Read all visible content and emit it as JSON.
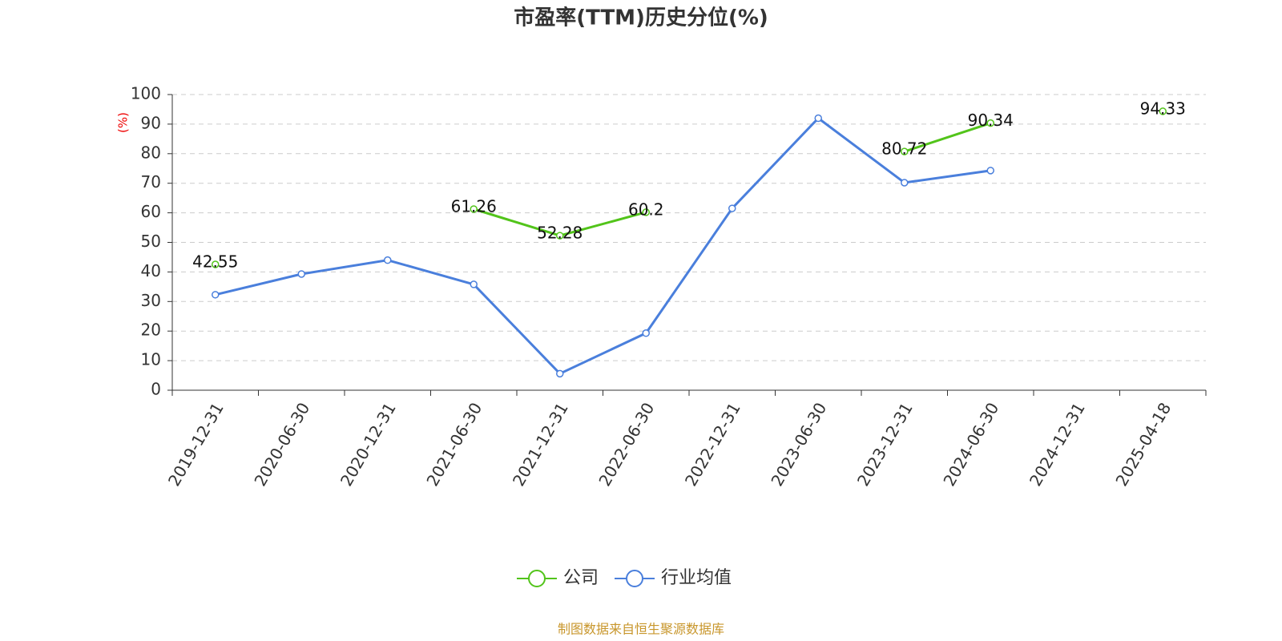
{
  "chart_data": {
    "type": "line",
    "title": "市盈率(TTM)历史分位(%)",
    "y_label": "(%)",
    "categories": [
      "2019-12-31",
      "2020-06-30",
      "2020-12-31",
      "2021-06-30",
      "2021-12-31",
      "2022-06-30",
      "2022-12-31",
      "2023-06-30",
      "2023-12-31",
      "2024-06-30",
      "2024-12-31",
      "2025-04-18"
    ],
    "series": [
      {
        "name": "公司",
        "color": "#52c41a",
        "values": [
          42.55,
          null,
          null,
          61.26,
          52.28,
          60.2,
          null,
          null,
          80.72,
          90.34,
          null,
          94.33
        ],
        "show_labels": true
      },
      {
        "name": "行业均值",
        "color": "#4a7fdc",
        "values": [
          32.3,
          39.3,
          44,
          35.8,
          5.6,
          19.3,
          61.5,
          92,
          70.2,
          74.3,
          null,
          null
        ],
        "show_labels": false
      }
    ],
    "ylim": [
      0,
      100
    ],
    "yticks": [
      0,
      10,
      20,
      30,
      40,
      50,
      60,
      70,
      80,
      90,
      100
    ],
    "grid": true,
    "legend": "bottom",
    "source": "制图数据来自恒生聚源数据库"
  }
}
